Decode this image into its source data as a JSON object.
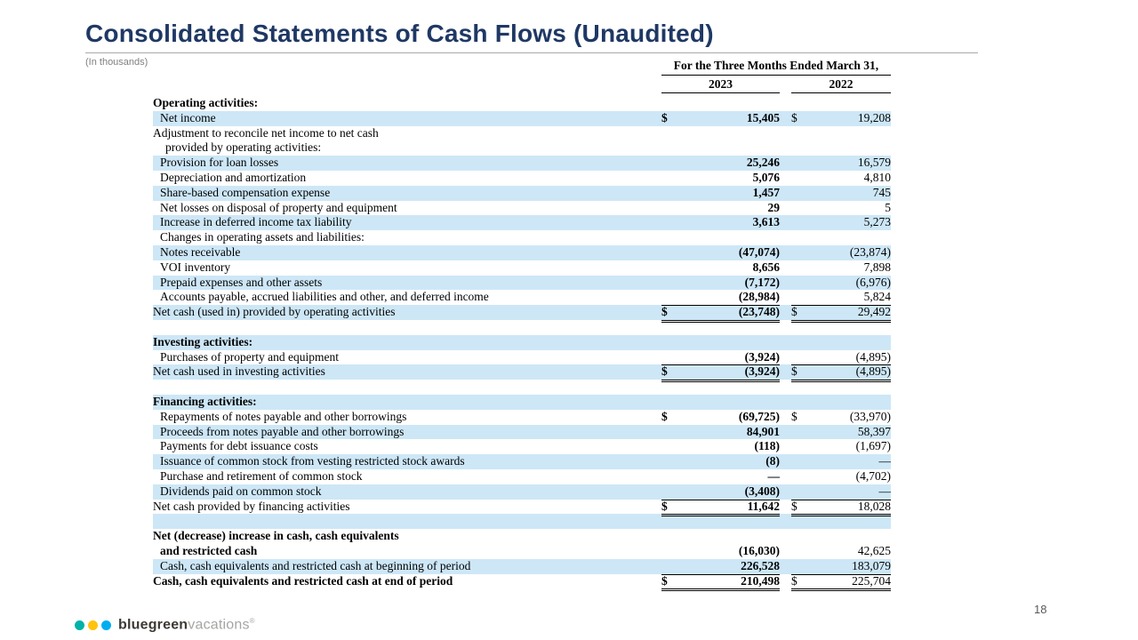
{
  "slide": {
    "title": "Consolidated Statements of Cash Flows (Unaudited)",
    "units_note": "(In thousands)",
    "page_number": "18"
  },
  "table": {
    "period_header": "For the Three Months Ended March 31,",
    "columns": [
      "2023",
      "2022"
    ],
    "rows": [
      {
        "label": "Operating activities:",
        "bold": true
      },
      {
        "label": "Net income",
        "indent": 1,
        "shade": true,
        "d23": "$",
        "v23": "15,405",
        "d22": "$",
        "v22": "19,208"
      },
      {
        "label": "Adjustment to reconcile net income to net cash"
      },
      {
        "label": "provided by operating activities:",
        "indent": 2
      },
      {
        "label": "Provision for loan losses",
        "indent": 1,
        "shade": true,
        "v23": "25,246",
        "v22": "16,579"
      },
      {
        "label": "Depreciation and amortization",
        "indent": 1,
        "v23": "5,076",
        "v22": "4,810"
      },
      {
        "label": "Share-based compensation expense",
        "indent": 1,
        "shade": true,
        "v23": "1,457",
        "v22": "745"
      },
      {
        "label": "Net losses on disposal of property and equipment",
        "indent": 1,
        "v23": "29",
        "v22": "5"
      },
      {
        "label": "Increase in deferred income tax liability",
        "indent": 1,
        "shade": true,
        "v23": "3,613",
        "v22": "5,273"
      },
      {
        "label": "Changes in operating assets and liabilities:",
        "indent": 1
      },
      {
        "label": "Notes receivable",
        "indent": 1,
        "shade": true,
        "v23": "(47,074)",
        "v22": "(23,874)"
      },
      {
        "label": "VOI inventory",
        "indent": 1,
        "v23": "8,656",
        "v22": "7,898"
      },
      {
        "label": "Prepaid expenses and other assets",
        "indent": 1,
        "shade": true,
        "v23": "(7,172)",
        "v22": "(6,976)"
      },
      {
        "label": "Accounts payable, accrued liabilities and other, and deferred income",
        "indent": 1,
        "v23": "(28,984)",
        "v22": "5,824",
        "b23": "single",
        "b22": "single"
      },
      {
        "label": "Net cash (used in) provided by operating activities",
        "shade": true,
        "d23": "$",
        "v23": "(23,748)",
        "d22": "$",
        "v22": "29,492",
        "b23": "double",
        "b22": "double"
      },
      {
        "label": "",
        "spacer": true
      },
      {
        "label": "Investing activities:",
        "bold": true,
        "shade": true
      },
      {
        "label": "Purchases of property and equipment",
        "indent": 1,
        "v23": "(3,924)",
        "v22": "(4,895)",
        "b23": "single",
        "b22": "single"
      },
      {
        "label": "Net cash used in investing activities",
        "shade": true,
        "d23": "$",
        "v23": "(3,924)",
        "d22": "$",
        "v22": "(4,895)",
        "b23": "double",
        "b22": "double"
      },
      {
        "label": "",
        "spacer": true
      },
      {
        "label": "Financing activities:",
        "bold": true,
        "shade": true
      },
      {
        "label": "Repayments of notes payable and other borrowings",
        "indent": 1,
        "d23": "$",
        "v23": "(69,725)",
        "d22": "$",
        "v22": "(33,970)"
      },
      {
        "label": "Proceeds from notes payable and other borrowings",
        "indent": 1,
        "shade": true,
        "v23": "84,901",
        "v22": "58,397"
      },
      {
        "label": "Payments for debt issuance costs",
        "indent": 1,
        "v23": "(118)",
        "v22": "(1,697)"
      },
      {
        "label": "Issuance of common stock from vesting restricted stock awards",
        "indent": 1,
        "shade": true,
        "v23": "(8)",
        "v22": "—"
      },
      {
        "label": "Purchase and retirement of common stock",
        "indent": 1,
        "v23": "—",
        "v22": "(4,702)"
      },
      {
        "label": "Dividends paid on common stock",
        "indent": 1,
        "shade": true,
        "v23": "(3,408)",
        "v22": "—",
        "b23": "single",
        "b22": "single"
      },
      {
        "label": "Net cash provided by financing activities",
        "d23": "$",
        "v23": "11,642",
        "d22": "$",
        "v22": "18,028",
        "b23": "double",
        "b22": "double"
      },
      {
        "label": "",
        "spacer": true,
        "shade": true
      },
      {
        "label": "Net (decrease) increase in cash, cash equivalents",
        "bold": true
      },
      {
        "label": "and restricted cash",
        "bold": true,
        "indent": 1,
        "v23": "(16,030)",
        "v22": "42,625"
      },
      {
        "label": "Cash, cash equivalents and restricted cash at beginning of period",
        "indent": 1,
        "shade": true,
        "v23": "226,528",
        "v22": "183,079",
        "b23": "single",
        "b22": "single"
      },
      {
        "label": "Cash, cash equivalents and restricted cash at end of period",
        "bold": true,
        "d23": "$",
        "v23": "210,498",
        "d22": "$",
        "v22": "225,704",
        "b23": "double",
        "b22": "double"
      }
    ]
  },
  "footer": {
    "logo_bold": "bluegreen",
    "logo_light": "vacations",
    "logo_mark": "®"
  },
  "colors": {
    "title": "#1F3864",
    "row-shade": "#CDE7F7",
    "muted": "#7f7f7f",
    "dot-teal": "#00B2A9",
    "dot-yellow": "#FFC20E",
    "dot-blue": "#00AEEF"
  }
}
